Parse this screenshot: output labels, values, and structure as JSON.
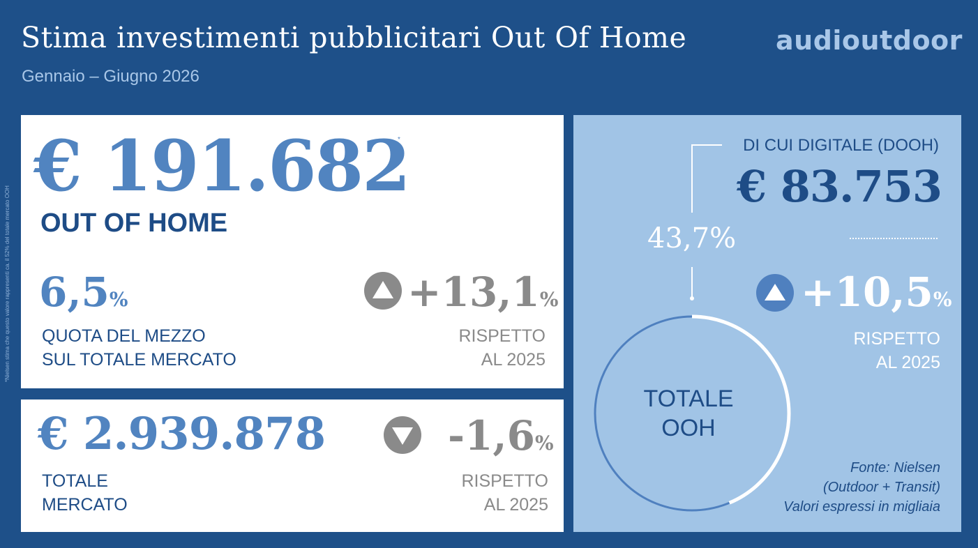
{
  "header": {
    "title": "Stima investimenti pubblicitari Out Of Home",
    "subtitle": "Gennaio – Giugno 2026",
    "logo": "audioutdoor"
  },
  "footnote": "*Nielsen stima che questo valore rappresenti ca. il 52% del totale mercato OOH",
  "ooh_card": {
    "value": "€ 191.682",
    "asterisk": "*",
    "label": "OUT OF HOME",
    "share_value": "6,5",
    "share_unit": "%",
    "share_label_line1": "QUOTA DEL MEZZO",
    "share_label_line2": "SUL TOTALE MERCATO",
    "change_value": "+13,1",
    "change_unit": "%",
    "change_direction_icon": "triangle-up-icon",
    "change_label_line1": "RISPETTO",
    "change_label_line2": "AL 2025"
  },
  "market_card": {
    "value": "€ 2.939.878",
    "label_line1": "TOTALE",
    "label_line2": "MERCATO",
    "change_value": "-1,6",
    "change_unit": "%",
    "change_direction_icon": "triangle-down-icon",
    "change_label_line1": "RISPETTO",
    "change_label_line2": "AL 2025"
  },
  "dooh_card": {
    "label": "DI CUI DIGITALE (DOOH)",
    "value": "€ 83.753",
    "share_percent": "43,7%",
    "share_fraction": 0.437,
    "change_value": "+10,5",
    "change_unit": "%",
    "change_direction_icon": "triangle-up-icon",
    "change_label_line1": "RISPETTO",
    "change_label_line2": "AL 2025",
    "donut_label_line1": "TOTALE",
    "donut_label_line2": "OOH",
    "source_line1": "Fonte: Nielsen",
    "source_line2": "(Outdoor + Transit)",
    "source_line3": "Valori espressi in migliaia"
  },
  "colors": {
    "background": "#1e5089",
    "accent_blue": "#5184c0",
    "dark_blue": "#1e4c86",
    "light_blue_panel": "#a1c4e6",
    "grey": "#8a8a8a"
  }
}
